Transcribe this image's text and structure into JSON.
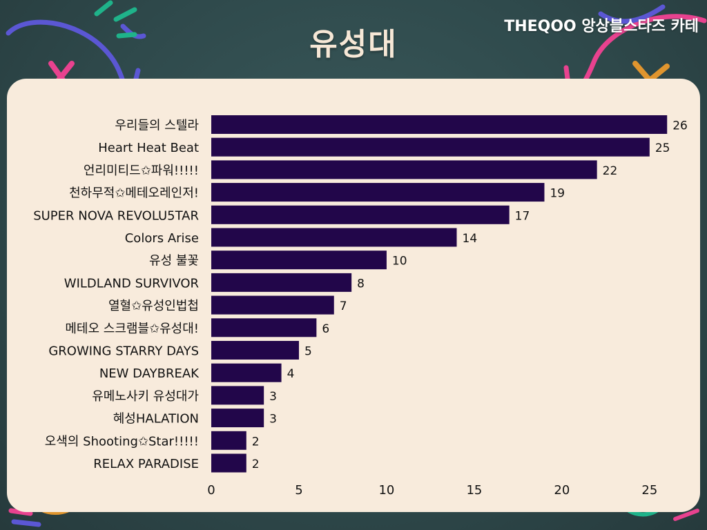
{
  "header": {
    "brand": "THEQOO 앙상블스타즈 카테"
  },
  "colors": {
    "bar": "#22064a",
    "panel": "#f8ebdc",
    "text": "#111111",
    "decor_purple": "#5b57d4",
    "decor_pink": "#e8428f",
    "decor_green": "#1fb38a",
    "decor_orange": "#e0952e"
  },
  "chart_data": {
    "type": "bar",
    "orientation": "horizontal",
    "title": "유성대",
    "categories": [
      "우리들의 스텔라",
      "Heart Heat Beat",
      "언리미티드✩파워!!!!!",
      "천하무적✩메테오레인저!",
      "SUPER NOVA REVOLU5TAR",
      "Colors Arise",
      "유성 불꽃",
      "WILDLAND SURVIVOR",
      "열혈✩유성인법첩",
      "메테오 스크램블✩유성대!",
      "GROWING STARRY DAYS",
      "NEW DAYBREAK",
      "유메노사키 유성대가",
      "혜성HALATION",
      "오색의 Shooting✩Star!!!!!",
      "RELAX PARADISE"
    ],
    "values": [
      26,
      25,
      22,
      19,
      17,
      14,
      10,
      8,
      7,
      6,
      5,
      4,
      3,
      3,
      2,
      2
    ],
    "xlim": [
      0,
      26.7
    ],
    "xticks": [
      "0",
      "5",
      "10",
      "15",
      "20",
      "25"
    ],
    "xlabel": "",
    "ylabel": "",
    "grid": false,
    "data_labels": true
  }
}
